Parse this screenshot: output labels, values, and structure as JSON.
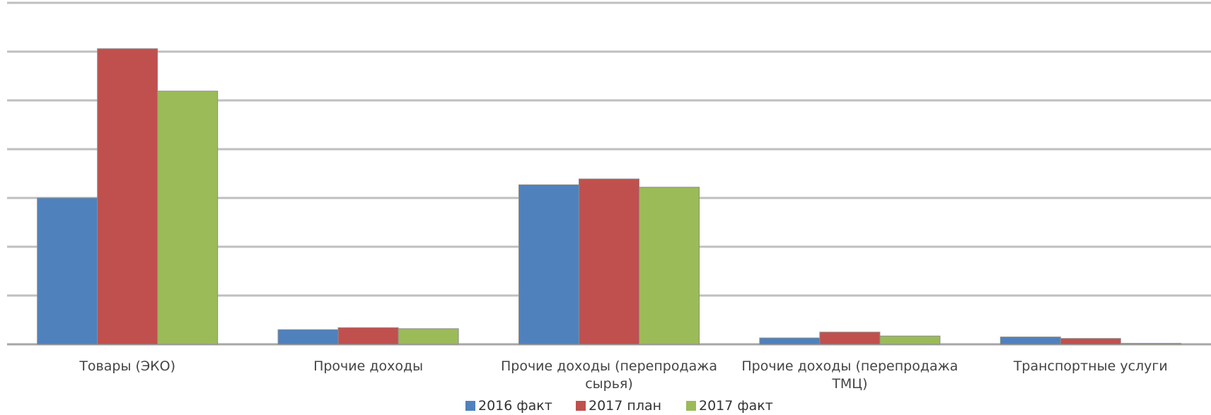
{
  "chart_data": {
    "type": "bar",
    "title": "",
    "xlabel": "",
    "ylabel": "",
    "categories": [
      "Товары (ЭКО)",
      "Прочие доходы",
      "Прочие доходы (перепродажа сырья)",
      "Прочие доходы (перепродажа ТМЦ)",
      "Транспортные услуги"
    ],
    "category_lines": [
      [
        "Товары (ЭКО)"
      ],
      [
        "Прочие доходы"
      ],
      [
        "Прочие доходы (перепродажа",
        "сырья)"
      ],
      [
        "Прочие доходы (перепродажа",
        "ТМЦ)"
      ],
      [
        "Транспортные услуги"
      ]
    ],
    "series": [
      {
        "name": "2016 факт",
        "color": "#4f81bd",
        "values": [
          3.0,
          0.3,
          3.27,
          0.13,
          0.15
        ]
      },
      {
        "name": "2017 план",
        "color": "#c0504d",
        "values": [
          6.06,
          0.34,
          3.39,
          0.25,
          0.12
        ]
      },
      {
        "name": "2017 факт",
        "color": "#9bbb59",
        "values": [
          5.19,
          0.32,
          3.22,
          0.17,
          0.02
        ]
      }
    ],
    "ylim": [
      0,
      7
    ],
    "grid": true,
    "legend_position": "bottom"
  }
}
